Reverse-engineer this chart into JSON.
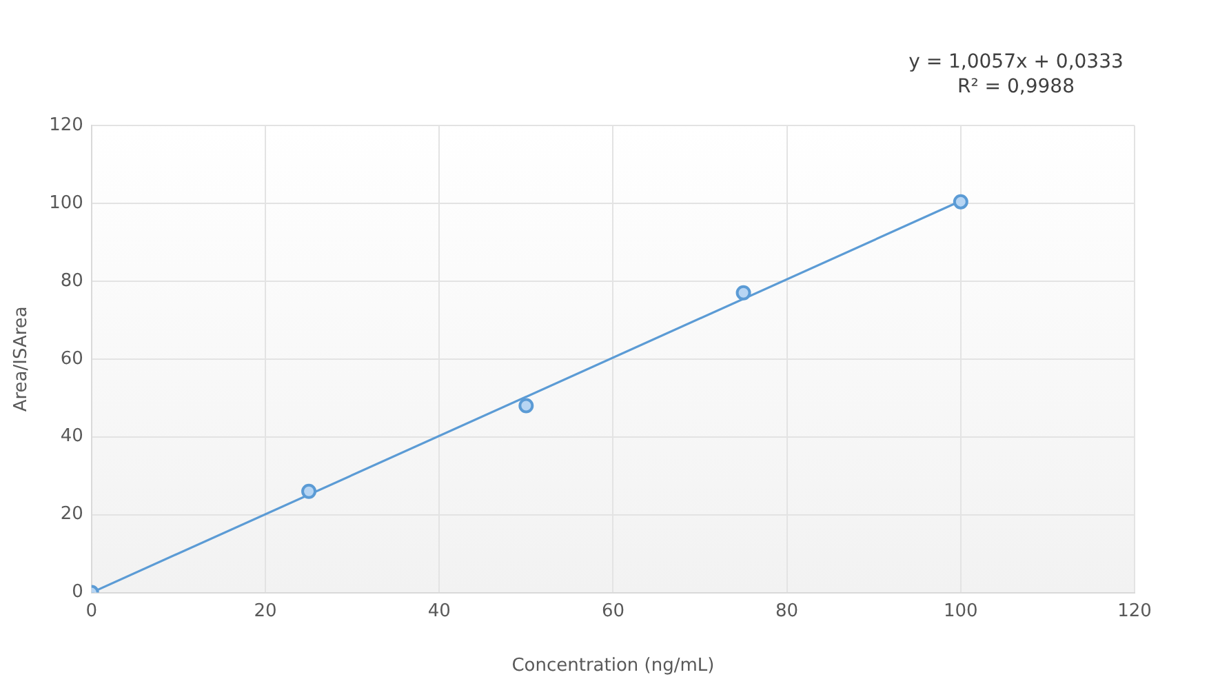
{
  "chart_data": {
    "type": "scatter",
    "xlabel": "Concentration (ng/mL)",
    "ylabel": "Area/ISArea",
    "annotations": [
      "y = 1,0057x + 0,0333",
      "R² = 0,9988"
    ],
    "x": [
      0,
      25,
      50,
      75,
      100
    ],
    "series": [
      {
        "type": "scatter",
        "color": "#5b9bd5",
        "marker": "circle",
        "values": [
          0,
          26,
          48,
          77,
          100.4
        ]
      },
      {
        "type": "line",
        "color": "#5b9bd5",
        "marker": "none",
        "x": [
          0,
          100
        ],
        "values": [
          0,
          100.6
        ]
      }
    ],
    "xlim": [
      0,
      120
    ],
    "xticks": [
      0,
      20,
      40,
      60,
      80,
      100,
      120
    ],
    "ylim": [
      0,
      120
    ],
    "yticks": [
      0,
      20,
      40,
      60,
      80,
      100,
      120
    ],
    "grid": true,
    "legend": false,
    "line_style": "solid"
  }
}
